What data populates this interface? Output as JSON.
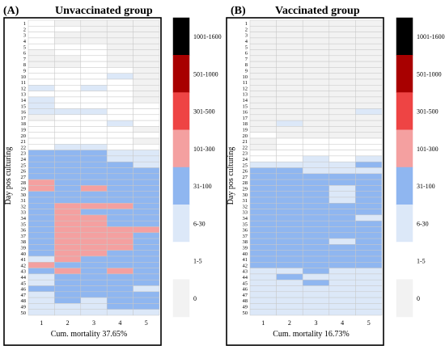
{
  "colors": {
    "lvl0": "#f2f2f2",
    "lvl1": "#ffffff",
    "lvl2": "#dce8f8",
    "lvl3": "#8fb6f0",
    "lvl4": "#f4a0a0",
    "lvl5": "#ee4444",
    "lvl6": "#a80000",
    "lvl7": "#000000",
    "border": "#000000",
    "cell_line": "#c8c8c8"
  },
  "chart_data": [
    {
      "type": "heatmap",
      "panel_label": "(A)",
      "title": "Unvaccinated group",
      "ylabel": "Day pos culturing",
      "xlabel": "Cum. mortality 37.65%",
      "columns": [
        "1",
        "2",
        "3",
        "4",
        "5"
      ],
      "rows": [
        "1",
        "2",
        "3",
        "4",
        "5",
        "6",
        "7",
        "8",
        "9",
        "10",
        "11",
        "12",
        "13",
        "14",
        "15",
        "16",
        "17",
        "18",
        "19",
        "20",
        "21",
        "22",
        "23",
        "24",
        "25",
        "26",
        "27",
        "28",
        "29",
        "30",
        "31",
        "32",
        "33",
        "34",
        "35",
        "36",
        "37",
        "38",
        "39",
        "40",
        "41",
        "42",
        "43",
        "44",
        "45",
        "46",
        "47",
        "48",
        "49",
        "50"
      ],
      "levels": [
        "0",
        "1-5",
        "6-30",
        "31-100",
        "101-300",
        "301-500",
        "501-1000",
        "1001-1600"
      ],
      "values": [
        [
          1,
          0,
          0,
          0,
          0
        ],
        [
          1,
          1,
          0,
          0,
          0
        ],
        [
          1,
          0,
          0,
          0,
          0
        ],
        [
          1,
          0,
          0,
          0,
          0
        ],
        [
          1,
          1,
          1,
          0,
          0
        ],
        [
          0,
          1,
          1,
          0,
          0
        ],
        [
          0,
          0,
          1,
          0,
          0
        ],
        [
          0,
          0,
          1,
          0,
          0
        ],
        [
          1,
          1,
          1,
          1,
          0
        ],
        [
          1,
          1,
          1,
          2,
          0
        ],
        [
          1,
          1,
          1,
          1,
          0
        ],
        [
          2,
          1,
          2,
          1,
          0
        ],
        [
          1,
          1,
          1,
          1,
          0
        ],
        [
          2,
          1,
          1,
          1,
          0
        ],
        [
          2,
          1,
          1,
          1,
          1
        ],
        [
          2,
          2,
          2,
          1,
          1
        ],
        [
          0,
          1,
          1,
          1,
          1
        ],
        [
          1,
          1,
          1,
          2,
          1
        ],
        [
          1,
          1,
          1,
          1,
          0
        ],
        [
          1,
          1,
          1,
          1,
          1
        ],
        [
          1,
          1,
          1,
          1,
          0
        ],
        [
          1,
          2,
          2,
          1,
          1
        ],
        [
          3,
          3,
          3,
          2,
          2
        ],
        [
          3,
          3,
          3,
          2,
          2
        ],
        [
          3,
          3,
          3,
          3,
          2
        ],
        [
          3,
          3,
          3,
          3,
          3
        ],
        [
          3,
          3,
          3,
          3,
          3
        ],
        [
          4,
          3,
          3,
          3,
          3
        ],
        [
          4,
          3,
          4,
          3,
          3
        ],
        [
          3,
          3,
          3,
          3,
          3
        ],
        [
          3,
          3,
          3,
          3,
          3
        ],
        [
          3,
          4,
          4,
          4,
          3
        ],
        [
          3,
          4,
          3,
          3,
          3
        ],
        [
          3,
          4,
          4,
          3,
          3
        ],
        [
          3,
          4,
          4,
          3,
          3
        ],
        [
          3,
          4,
          4,
          4,
          4
        ],
        [
          3,
          4,
          4,
          4,
          3
        ],
        [
          3,
          4,
          4,
          4,
          3
        ],
        [
          3,
          4,
          4,
          4,
          3
        ],
        [
          3,
          4,
          4,
          3,
          3
        ],
        [
          2,
          4,
          3,
          3,
          3
        ],
        [
          4,
          3,
          3,
          3,
          3
        ],
        [
          3,
          4,
          3,
          4,
          3
        ],
        [
          2,
          3,
          3,
          3,
          3
        ],
        [
          2,
          3,
          3,
          3,
          3
        ],
        [
          3,
          3,
          3,
          3,
          2
        ],
        [
          2,
          3,
          3,
          3,
          3
        ],
        [
          2,
          3,
          2,
          3,
          3
        ],
        [
          2,
          2,
          2,
          3,
          3
        ],
        [
          2,
          2,
          2,
          2,
          2
        ]
      ]
    },
    {
      "type": "heatmap",
      "panel_label": "(B)",
      "title": "Vaccinated group",
      "ylabel": "Day pos culturing",
      "xlabel": "Cum. mortality 16.73%",
      "columns": [
        "1",
        "2",
        "3",
        "4",
        "5"
      ],
      "rows": [
        "1",
        "2",
        "3",
        "4",
        "5",
        "6",
        "7",
        "8",
        "9",
        "10",
        "11",
        "12",
        "13",
        "14",
        "15",
        "16",
        "17",
        "18",
        "19",
        "20",
        "21",
        "22",
        "23",
        "24",
        "25",
        "26",
        "27",
        "28",
        "29",
        "30",
        "31",
        "32",
        "33",
        "34",
        "35",
        "36",
        "37",
        "38",
        "39",
        "40",
        "41",
        "42",
        "43",
        "44",
        "45",
        "46",
        "47",
        "48",
        "49",
        "50"
      ],
      "levels": [
        "0",
        "1-5",
        "6-30",
        "31-100",
        "101-300",
        "301-500",
        "501-1000",
        "1001-1600"
      ],
      "values": [
        [
          0,
          0,
          0,
          0,
          0
        ],
        [
          0,
          0,
          0,
          0,
          0
        ],
        [
          0,
          0,
          0,
          0,
          0
        ],
        [
          0,
          0,
          0,
          0,
          0
        ],
        [
          0,
          0,
          0,
          0,
          0
        ],
        [
          0,
          0,
          0,
          0,
          0
        ],
        [
          0,
          0,
          0,
          0,
          0
        ],
        [
          0,
          0,
          0,
          0,
          0
        ],
        [
          0,
          0,
          0,
          0,
          0
        ],
        [
          0,
          0,
          0,
          0,
          0
        ],
        [
          0,
          0,
          0,
          0,
          0
        ],
        [
          0,
          0,
          0,
          0,
          0
        ],
        [
          0,
          0,
          0,
          0,
          0
        ],
        [
          0,
          0,
          0,
          0,
          0
        ],
        [
          0,
          0,
          0,
          0,
          0
        ],
        [
          0,
          0,
          0,
          0,
          2
        ],
        [
          0,
          0,
          0,
          0,
          0
        ],
        [
          0,
          2,
          0,
          0,
          0
        ],
        [
          0,
          0,
          0,
          0,
          0
        ],
        [
          1,
          0,
          0,
          0,
          0
        ],
        [
          0,
          1,
          1,
          1,
          1
        ],
        [
          0,
          1,
          1,
          1,
          1
        ],
        [
          1,
          1,
          1,
          1,
          1
        ],
        [
          1,
          1,
          2,
          1,
          2
        ],
        [
          2,
          2,
          2,
          2,
          3
        ],
        [
          3,
          3,
          2,
          2,
          2
        ],
        [
          3,
          3,
          3,
          3,
          3
        ],
        [
          3,
          3,
          3,
          3,
          3
        ],
        [
          3,
          3,
          3,
          2,
          3
        ],
        [
          3,
          3,
          3,
          2,
          3
        ],
        [
          3,
          3,
          3,
          2,
          3
        ],
        [
          3,
          3,
          3,
          3,
          3
        ],
        [
          3,
          3,
          3,
          3,
          3
        ],
        [
          3,
          3,
          3,
          3,
          2
        ],
        [
          3,
          3,
          3,
          3,
          3
        ],
        [
          3,
          3,
          3,
          3,
          3
        ],
        [
          3,
          3,
          3,
          3,
          3
        ],
        [
          3,
          3,
          3,
          2,
          3
        ],
        [
          3,
          3,
          3,
          3,
          3
        ],
        [
          3,
          3,
          3,
          3,
          3
        ],
        [
          3,
          3,
          3,
          3,
          3
        ],
        [
          3,
          3,
          3,
          3,
          3
        ],
        [
          2,
          2,
          3,
          2,
          2
        ],
        [
          2,
          3,
          2,
          2,
          2
        ],
        [
          2,
          2,
          3,
          2,
          2
        ],
        [
          2,
          2,
          2,
          2,
          2
        ],
        [
          2,
          2,
          2,
          2,
          2
        ],
        [
          2,
          2,
          2,
          2,
          2
        ],
        [
          2,
          2,
          2,
          2,
          2
        ],
        [
          2,
          2,
          2,
          2,
          2
        ]
      ]
    }
  ]
}
